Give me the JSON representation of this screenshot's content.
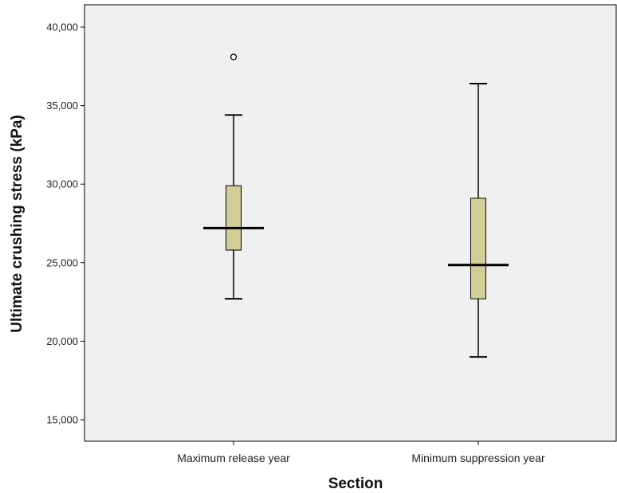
{
  "chart_data": {
    "type": "boxplot",
    "xlabel": "Section",
    "ylabel": "Ultimate crushing stress (kPa)",
    "ylim": [
      13500,
      41000
    ],
    "yticks": [
      15000,
      20000,
      25000,
      30000,
      35000,
      40000
    ],
    "ytick_labels": [
      "15,000",
      "20,000",
      "25,000",
      "30,000",
      "35,000",
      "40,000"
    ],
    "grid": false,
    "categories": [
      "Maximum release year",
      "Minimum suppression year"
    ],
    "boxes": [
      {
        "category": "Maximum release year",
        "whisker_low": 22700,
        "q1": 25800,
        "median": 27200,
        "q3": 29900,
        "whisker_high": 34400,
        "outliers": [
          38100
        ]
      },
      {
        "category": "Minimum suppression year",
        "whisker_low": 19000,
        "q1": 22700,
        "median": 24850,
        "q3": 29100,
        "whisker_high": 36400,
        "outliers": []
      }
    ],
    "colors": {
      "plot_background": "#f0f0f0",
      "box_fill": "#d3ce97",
      "stroke": "#000000"
    }
  }
}
